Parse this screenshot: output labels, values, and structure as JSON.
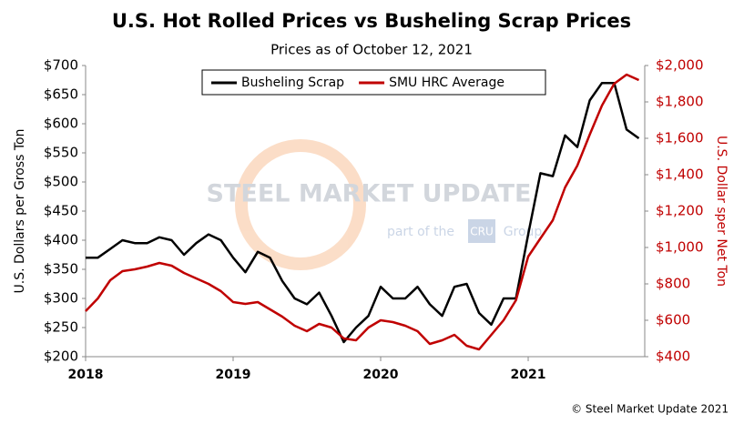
{
  "chart_data": {
    "type": "line",
    "title": "U.S. Hot Rolled Prices vs Busheling Scrap Prices",
    "subtitle": "Prices as of October 12, 2021",
    "y_label": "U.S. Dollars per Gross Ton",
    "y2_label": "U.S. Dollar sper Net Ton",
    "watermark": [
      "STEEL MARKET UPDATE",
      "part of the",
      "CRU",
      "Group"
    ],
    "source": "© Steel Market Update 2021",
    "x": [
      2018,
      2018.083,
      2018.167,
      2018.25,
      2018.333,
      2018.417,
      2018.5,
      2018.583,
      2018.667,
      2018.75,
      2018.833,
      2018.917,
      2019,
      2019.083,
      2019.167,
      2019.25,
      2019.333,
      2019.417,
      2019.5,
      2019.583,
      2019.667,
      2019.75,
      2019.833,
      2019.917,
      2020,
      2020.083,
      2020.167,
      2020.25,
      2020.333,
      2020.417,
      2020.5,
      2020.583,
      2020.667,
      2020.75,
      2020.833,
      2020.917,
      2021,
      2021.083,
      2021.167,
      2021.25,
      2021.333,
      2021.417,
      2021.5,
      2021.583,
      2021.667,
      2021.75
    ],
    "xlim": [
      2018,
      2021.79
    ],
    "xticks": [
      2018,
      2019,
      2020,
      2021
    ],
    "ylim": [
      200,
      700
    ],
    "yticks": [
      {
        "value": 200,
        "label": "$200"
      },
      {
        "value": 250,
        "label": "$250"
      },
      {
        "value": 300,
        "label": "$300"
      },
      {
        "value": 350,
        "label": "$350"
      },
      {
        "value": 400,
        "label": "$400"
      },
      {
        "value": 450,
        "label": "$450"
      },
      {
        "value": 500,
        "label": "$500"
      },
      {
        "value": 550,
        "label": "$550"
      },
      {
        "value": 600,
        "label": "$600"
      },
      {
        "value": 650,
        "label": "$650"
      },
      {
        "value": 700,
        "label": "$700"
      }
    ],
    "y2lim": [
      400,
      2000
    ],
    "y2ticks": [
      {
        "value": 400,
        "label": "$400"
      },
      {
        "value": 600,
        "label": "$600"
      },
      {
        "value": 800,
        "label": "$800"
      },
      {
        "value": 1000,
        "label": "$1,000"
      },
      {
        "value": 1200,
        "label": "$1,200"
      },
      {
        "value": 1400,
        "label": "$1,400"
      },
      {
        "value": 1600,
        "label": "$1,600"
      },
      {
        "value": 1800,
        "label": "$1,800"
      },
      {
        "value": 2000,
        "label": "$2,000"
      }
    ],
    "series": [
      {
        "name": "Busheling Scrap",
        "color": "#000000",
        "values": [
          370,
          370,
          385,
          400,
          395,
          395,
          405,
          400,
          375,
          395,
          410,
          400,
          370,
          345,
          380,
          370,
          330,
          300,
          290,
          310,
          270,
          225,
          250,
          270,
          320,
          300,
          300,
          320,
          290,
          270,
          320,
          325,
          275,
          255,
          300,
          300,
          410,
          515,
          510,
          580,
          560,
          640,
          670,
          670,
          590,
          575
        ]
      },
      {
        "name": "SMU HRC Average",
        "color": "#c00000",
        "axis": "y2",
        "values": [
          650,
          720,
          820,
          870,
          880,
          895,
          915,
          900,
          860,
          830,
          800,
          760,
          700,
          690,
          700,
          660,
          620,
          570,
          540,
          580,
          560,
          500,
          490,
          560,
          600,
          590,
          570,
          540,
          470,
          490,
          520,
          460,
          440,
          520,
          600,
          710,
          950,
          1050,
          1150,
          1330,
          1450,
          1620,
          1780,
          1900,
          1950,
          1920
        ]
      }
    ]
  }
}
